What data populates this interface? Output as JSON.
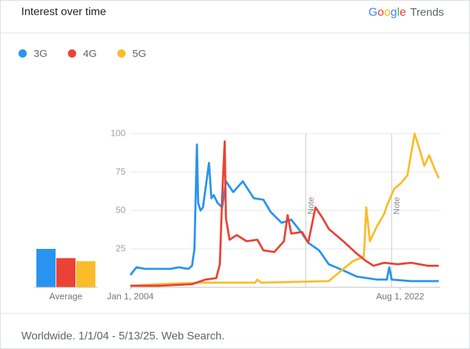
{
  "header": {
    "title": "Interest over time",
    "logo_brand": "Google",
    "logo_product": "Trends"
  },
  "chart_data": {
    "type": "line",
    "series": [
      {
        "name": "3G",
        "color": "#2a93f0",
        "x": [
          "2004-01-01",
          "2004-06-01",
          "2005-01-01",
          "2006-01-01",
          "2006-10-01",
          "2007-05-01",
          "2008-01-01",
          "2008-04-01",
          "2008-06-01",
          "2008-08-01",
          "2008-09-01",
          "2008-11-01",
          "2009-01-01",
          "2009-06-01",
          "2009-08-01",
          "2009-10-01",
          "2010-01-01",
          "2010-05-01",
          "2010-08-01",
          "2011-02-01",
          "2011-10-01",
          "2012-07-01",
          "2013-03-01",
          "2013-09-01",
          "2014-06-01",
          "2015-02-01",
          "2015-11-01",
          "2016-04-01",
          "2017-01-01",
          "2017-09-01",
          "2018-09-01",
          "2019-08-01",
          "2021-01-01",
          "2021-09-01",
          "2021-11-01",
          "2022-01-01",
          "2023-05-01",
          "2025-04-01"
        ],
        "values": [
          8,
          13,
          12,
          12,
          12,
          13,
          12,
          14,
          25,
          93,
          55,
          50,
          52,
          81,
          58,
          60,
          55,
          52,
          69,
          62,
          69,
          58,
          57,
          49,
          42,
          44,
          35,
          29,
          24,
          15,
          11,
          7,
          5,
          5,
          13,
          5,
          4,
          4
        ]
      },
      {
        "name": "4G",
        "color": "#ea4335",
        "x": [
          "2004-01-01",
          "2006-01-01",
          "2008-04-01",
          "2009-03-01",
          "2009-12-01",
          "2010-03-01",
          "2010-05-01",
          "2010-07-01",
          "2010-08-01",
          "2010-11-01",
          "2011-05-01",
          "2012-01-01",
          "2012-10-01",
          "2013-03-01",
          "2013-12-01",
          "2014-08-01",
          "2014-11-01",
          "2015-02-01",
          "2015-11-01",
          "2016-04-01",
          "2016-10-01",
          "2017-04-01",
          "2017-09-01",
          "2018-09-01",
          "2019-08-01",
          "2020-04-01",
          "2020-10-01",
          "2021-07-01",
          "2022-06-01",
          "2023-05-01",
          "2024-07-01",
          "2025-04-01"
        ],
        "values": [
          1,
          1,
          2,
          5,
          6,
          15,
          60,
          95,
          45,
          31,
          34,
          30,
          31,
          24,
          23,
          30,
          47,
          35,
          36,
          29,
          52,
          45,
          38,
          30,
          22,
          17,
          14,
          16,
          15,
          16,
          14,
          14
        ]
      },
      {
        "name": "5G",
        "color": "#fbbc2a",
        "x": [
          "2004-01-01",
          "2005-12-01",
          "2008-10-01",
          "2012-08-01",
          "2012-10-01",
          "2013-01-01",
          "2017-09-01",
          "2018-06-01",
          "2019-05-01",
          "2020-02-01",
          "2020-04-01",
          "2020-07-01",
          "2021-01-01",
          "2021-07-01",
          "2021-09-01",
          "2022-03-01",
          "2022-09-01",
          "2023-02-01",
          "2023-08-01",
          "2023-12-01",
          "2024-04-01",
          "2024-08-01",
          "2025-01-01",
          "2025-04-01"
        ],
        "values": [
          1,
          2,
          3,
          3,
          5,
          3,
          4,
          10,
          17,
          20,
          52,
          30,
          40,
          48,
          53,
          64,
          68,
          73,
          100,
          90,
          79,
          86,
          76,
          71
        ]
      }
    ],
    "xlim": [
      "2004-01-01",
      "2025-05-13"
    ],
    "xticks": [
      {
        "value": "2004-01-01",
        "label": "Jan 1, 2004"
      },
      {
        "value": "2022-08-01",
        "label": "Aug 1, 2022"
      }
    ],
    "ylim": [
      0,
      100
    ],
    "yticks": [
      25,
      50,
      75,
      100
    ],
    "grid": true,
    "notes": [
      {
        "x": "2016-02-01",
        "label": "Note"
      },
      {
        "x": "2022-01-01",
        "label": "Note"
      }
    ],
    "averages": {
      "label": "Average",
      "values": [
        25,
        19,
        17
      ]
    }
  },
  "footer": "Worldwide. 1/1/04 - 5/13/25. Web Search."
}
